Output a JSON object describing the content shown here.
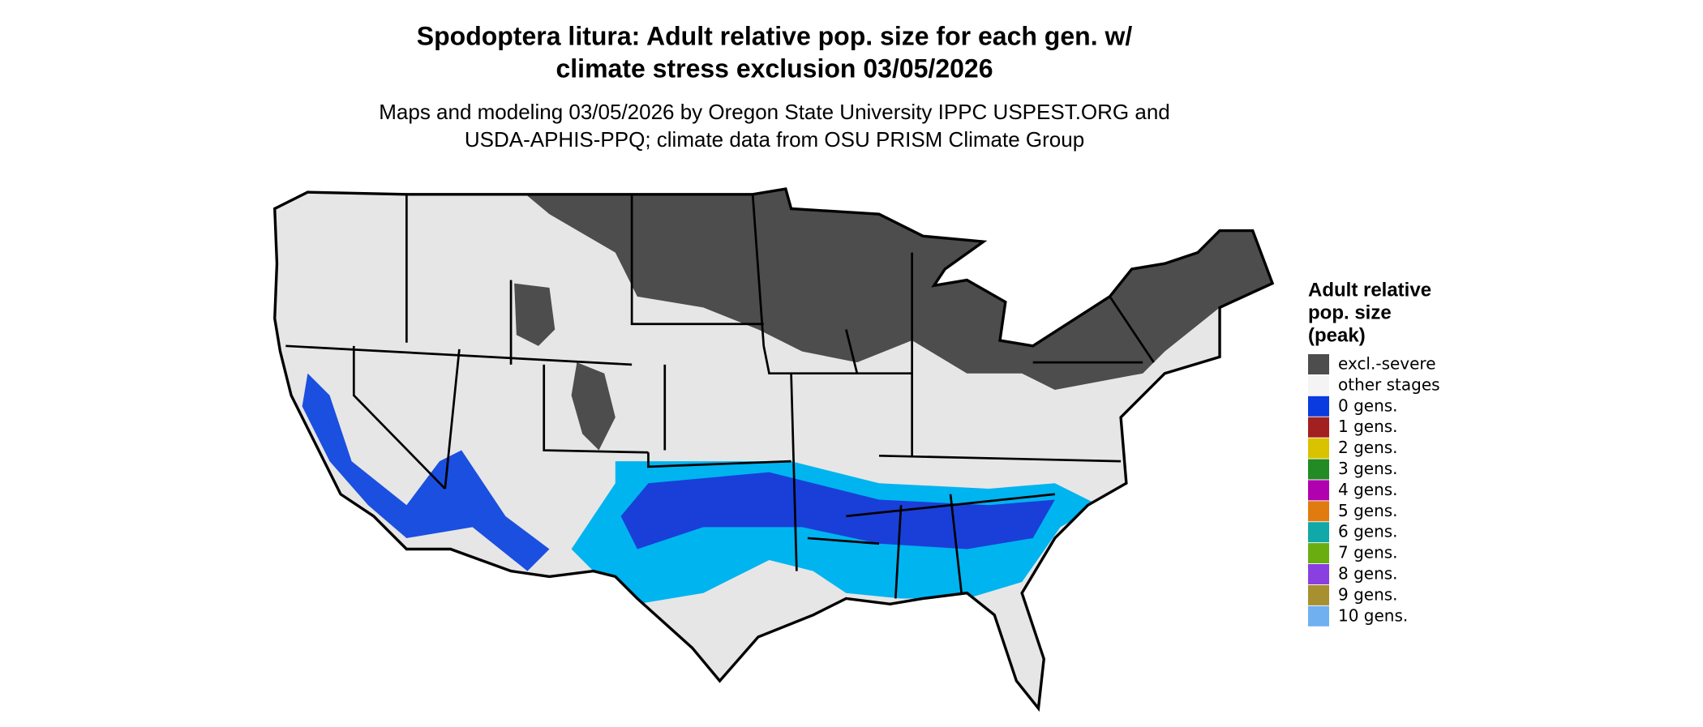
{
  "header": {
    "title": [
      "Spodoptera litura: Adult relative pop. size for each gen. w/",
      "climate stress exclusion 03/05/2026"
    ],
    "subtitle": [
      "Maps and modeling 03/05/2026 by Oregon State University IPPC USPEST.ORG and",
      "USDA-APHIS-PPQ; climate data from OSU PRISM Climate Group"
    ]
  },
  "legend": {
    "title": [
      "Adult relative",
      "pop. size",
      "(peak)"
    ],
    "items": [
      {
        "label": "excl.-severe",
        "color": "#4d4d4d"
      },
      {
        "label": "other stages",
        "color": "#f4f4f4"
      },
      {
        "label": "0 gens.",
        "color": "#0a3be0"
      },
      {
        "label": "1 gens.",
        "color": "#a32020"
      },
      {
        "label": "2 gens.",
        "color": "#d9c200"
      },
      {
        "label": "3 gens.",
        "color": "#238b23"
      },
      {
        "label": "4 gens.",
        "color": "#b000b0"
      },
      {
        "label": "5 gens.",
        "color": "#e07b10"
      },
      {
        "label": "6 gens.",
        "color": "#10a8a8"
      },
      {
        "label": "7 gens.",
        "color": "#6aad10"
      },
      {
        "label": "8 gens.",
        "color": "#8a3fe0"
      },
      {
        "label": "9 gens.",
        "color": "#a89030"
      },
      {
        "label": "10 gens.",
        "color": "#70b0f0"
      }
    ]
  }
}
